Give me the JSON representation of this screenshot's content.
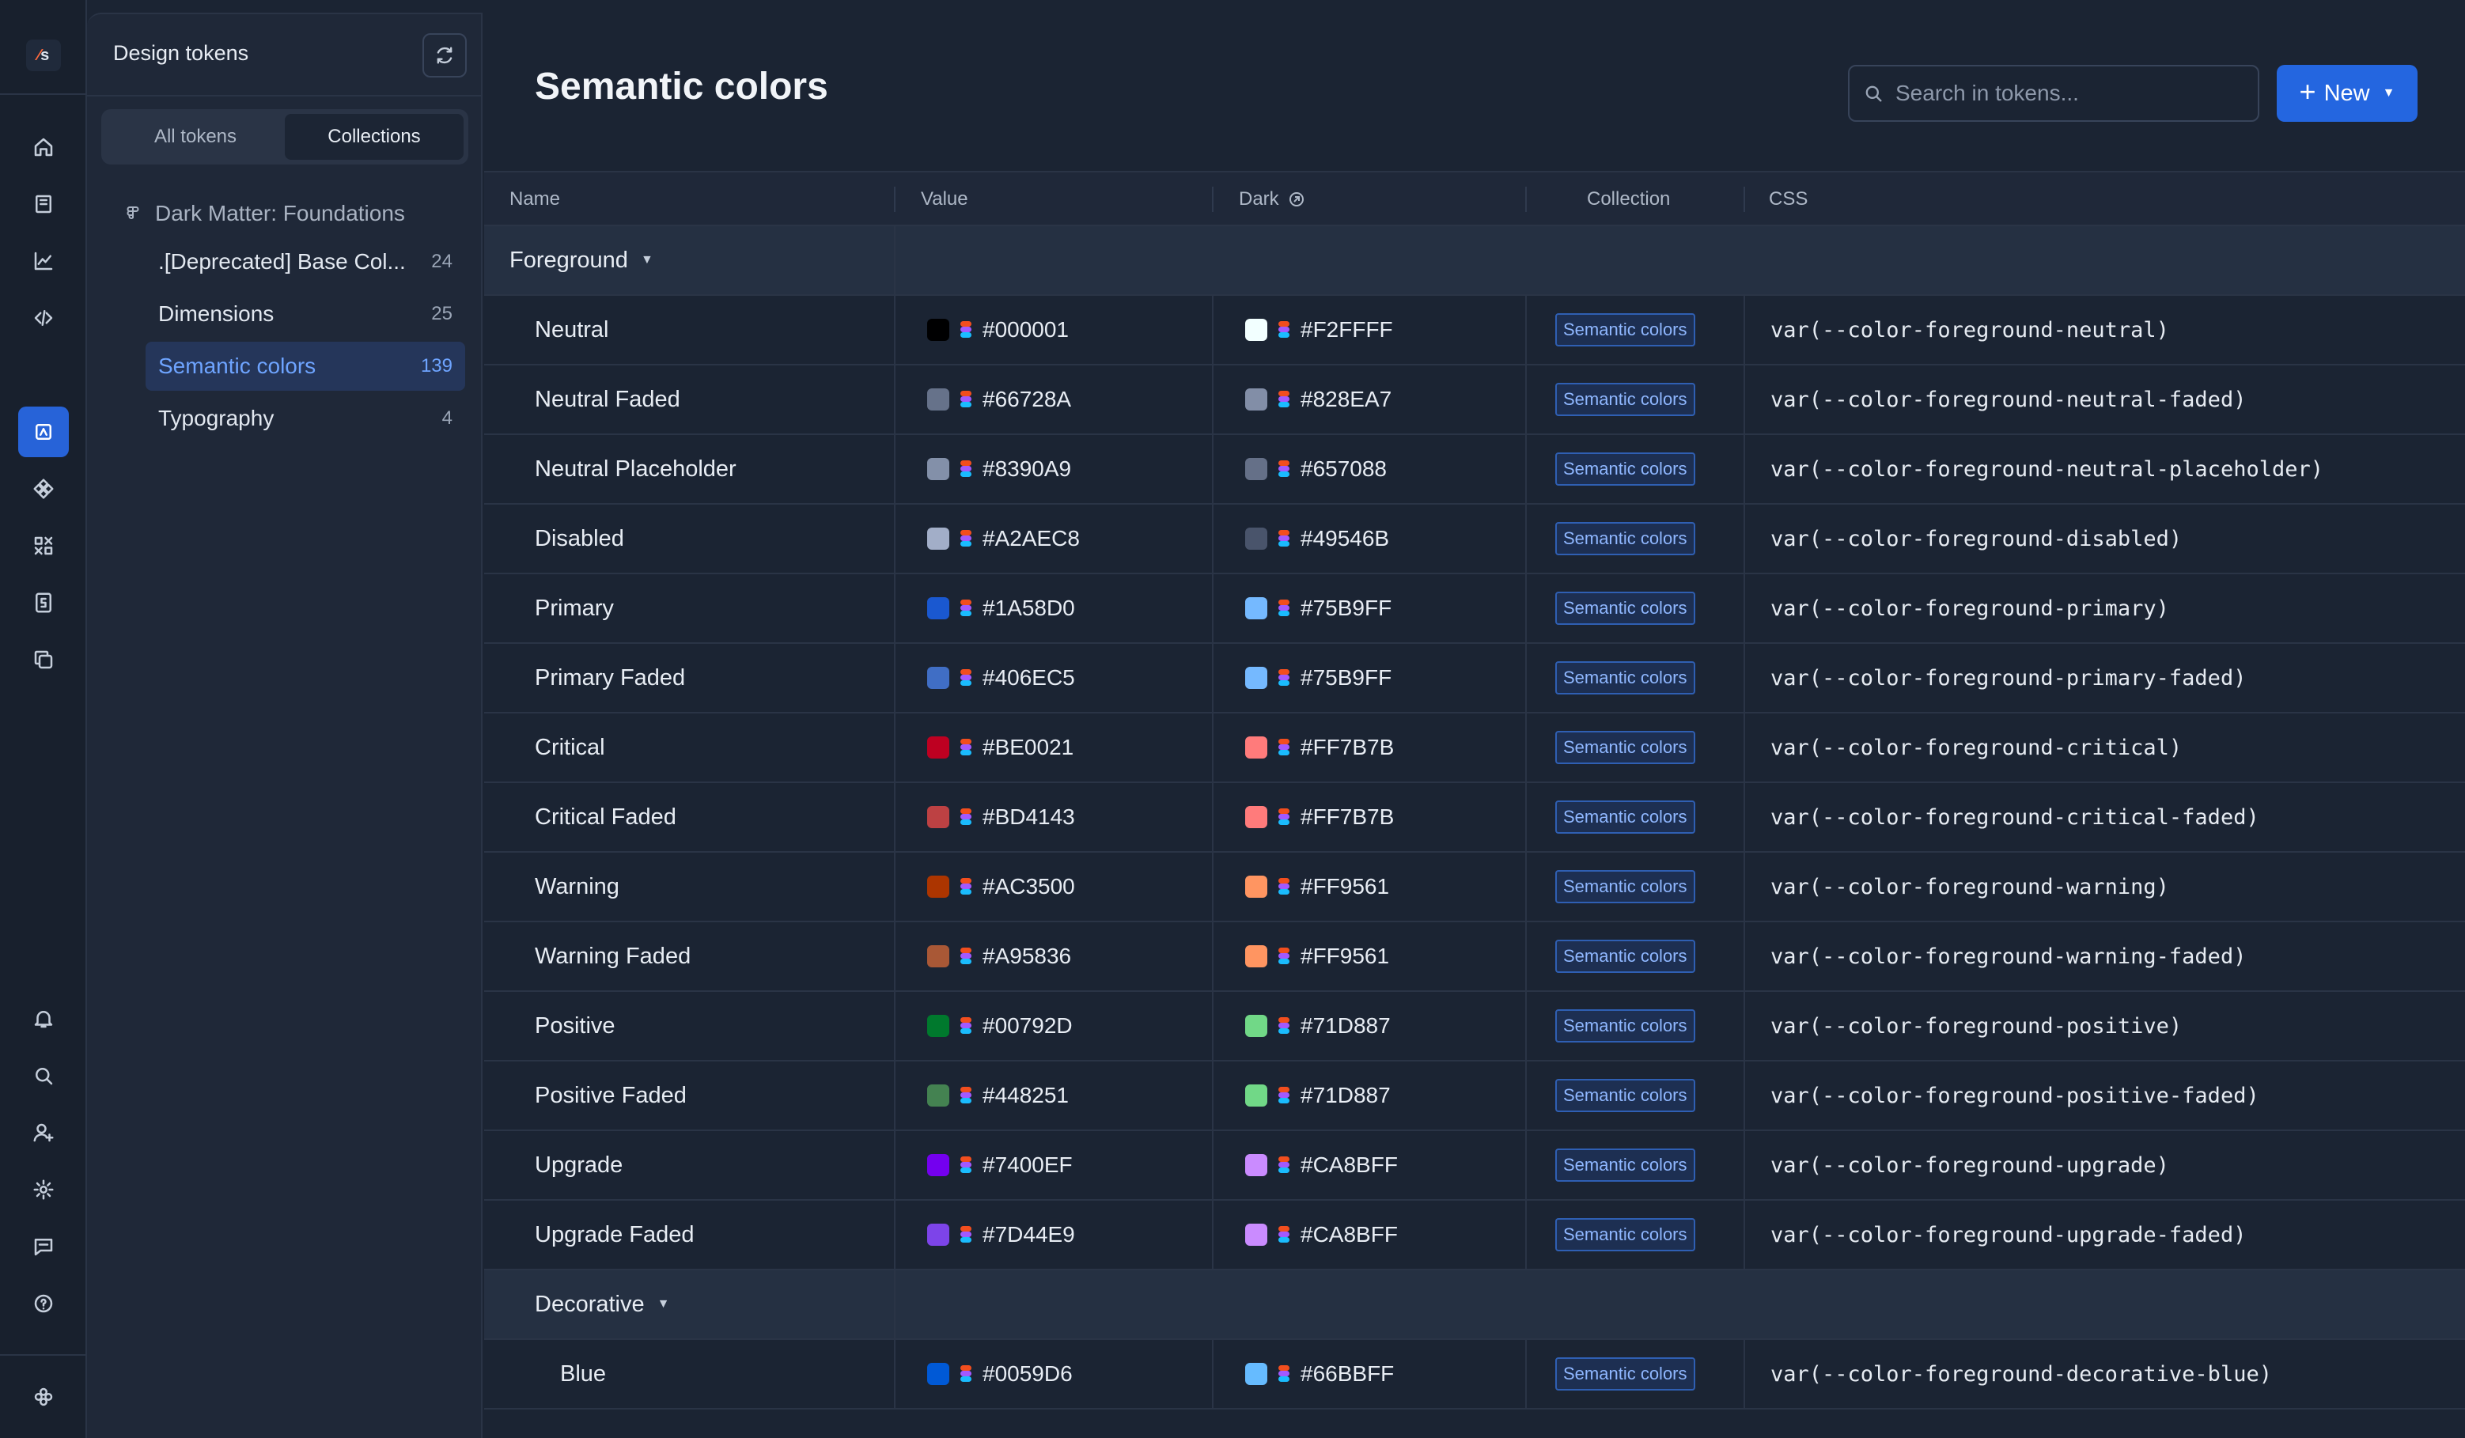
{
  "rail": {
    "logo": "s",
    "icons": [
      "home-icon",
      "book-icon",
      "chart-icon",
      "code-icon",
      "tokens-icon",
      "component-icon",
      "assets-icon",
      "doc-icon",
      "copy-icon",
      "bell-icon",
      "search-icon",
      "add-user-icon",
      "gear-icon",
      "chat-icon",
      "help-icon",
      "app-logo-icon"
    ]
  },
  "sidebar": {
    "title": "Design tokens",
    "tabs": [
      "All tokens",
      "Collections"
    ],
    "active_tab": "Collections",
    "root": "Dark Matter: Foundations",
    "items": [
      {
        "label": ".[Deprecated] Base Col...",
        "count": "24"
      },
      {
        "label": "Dimensions",
        "count": "25"
      },
      {
        "label": "Semantic colors",
        "count": "139"
      },
      {
        "label": "Typography",
        "count": "4"
      }
    ]
  },
  "header": {
    "title": "Semantic colors",
    "search_placeholder": "Search in tokens...",
    "new_label": "New"
  },
  "table": {
    "columns": [
      "Name",
      "Value",
      "Dark",
      "Collection",
      "CSS"
    ],
    "groups": [
      {
        "name": "Foreground",
        "rows": [
          {
            "name": "Neutral",
            "value": "#000001",
            "dark": "#F2FFFF",
            "collection": "Semantic colors",
            "css": "var(--color-foreground-neutral)"
          },
          {
            "name": "Neutral Faded",
            "value": "#66728A",
            "dark": "#828EA7",
            "collection": "Semantic colors",
            "css": "var(--color-foreground-neutral-faded)"
          },
          {
            "name": "Neutral Placeholder",
            "value": "#8390A9",
            "dark": "#657088",
            "collection": "Semantic colors",
            "css": "var(--color-foreground-neutral-placeholder)"
          },
          {
            "name": "Disabled",
            "value": "#A2AEC8",
            "dark": "#49546B",
            "collection": "Semantic colors",
            "css": "var(--color-foreground-disabled)"
          },
          {
            "name": "Primary",
            "value": "#1A58D0",
            "dark": "#75B9FF",
            "collection": "Semantic colors",
            "css": "var(--color-foreground-primary)"
          },
          {
            "name": "Primary Faded",
            "value": "#406EC5",
            "dark": "#75B9FF",
            "collection": "Semantic colors",
            "css": "var(--color-foreground-primary-faded)"
          },
          {
            "name": "Critical",
            "value": "#BE0021",
            "dark": "#FF7B7B",
            "collection": "Semantic colors",
            "css": "var(--color-foreground-critical)"
          },
          {
            "name": "Critical Faded",
            "value": "#BD4143",
            "dark": "#FF7B7B",
            "collection": "Semantic colors",
            "css": "var(--color-foreground-critical-faded)"
          },
          {
            "name": "Warning",
            "value": "#AC3500",
            "dark": "#FF9561",
            "collection": "Semantic colors",
            "css": "var(--color-foreground-warning)"
          },
          {
            "name": "Warning Faded",
            "value": "#A95836",
            "dark": "#FF9561",
            "collection": "Semantic colors",
            "css": "var(--color-foreground-warning-faded)"
          },
          {
            "name": "Positive",
            "value": "#00792D",
            "dark": "#71D887",
            "collection": "Semantic colors",
            "css": "var(--color-foreground-positive)"
          },
          {
            "name": "Positive Faded",
            "value": "#448251",
            "dark": "#71D887",
            "collection": "Semantic colors",
            "css": "var(--color-foreground-positive-faded)"
          },
          {
            "name": "Upgrade",
            "value": "#7400EF",
            "dark": "#CA8BFF",
            "collection": "Semantic colors",
            "css": "var(--color-foreground-upgrade)"
          },
          {
            "name": "Upgrade Faded",
            "value": "#7D44E9",
            "dark": "#CA8BFF",
            "collection": "Semantic colors",
            "css": "var(--color-foreground-upgrade-faded)"
          }
        ]
      },
      {
        "name": "Decorative",
        "rows": [
          {
            "name": "Blue",
            "value": "#0059D6",
            "dark": "#66BBFF",
            "collection": "Semantic colors",
            "css": "var(--color-foreground-decorative-blue)"
          }
        ]
      }
    ]
  },
  "colors": {
    "accent": "#2466E0",
    "active_nav": "#25365A",
    "background": "#1B2433"
  }
}
